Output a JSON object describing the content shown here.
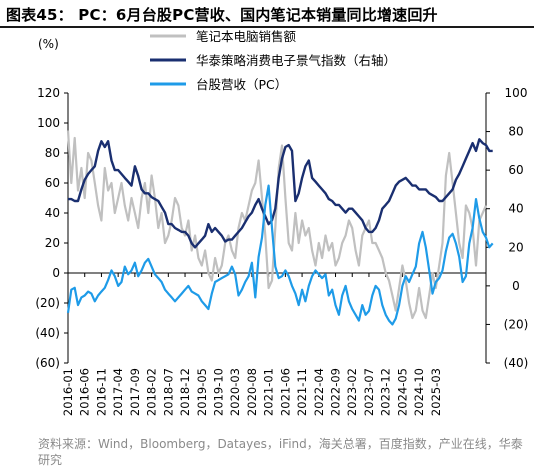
{
  "figure_title": "图表45： PC：6月台股PC营收、国内笔记本销量同比增速回升",
  "source_note": "资料来源：Wind，Bloomberg，Datayes，iFind，海关总署，百度指数，产业在线，华泰研究",
  "chart_data": {
    "type": "line",
    "unit_label": "(%)",
    "left_axis": {
      "ylim": [
        -60,
        120
      ],
      "ticks": [
        "120",
        "100",
        "80",
        "60",
        "40",
        "20",
        "0",
        "(20)",
        "(40)",
        "(60)"
      ]
    },
    "right_axis": {
      "ylim": [
        -40,
        100
      ],
      "ticks": [
        "100",
        "80",
        "60",
        "40",
        "20",
        "0",
        "(20)",
        "(40)"
      ]
    },
    "x_tick_labels": [
      "2016-01",
      "2016-06",
      "2016-11",
      "2017-04",
      "2017-09",
      "2018-02",
      "2018-07",
      "2018-12",
      "2019-05",
      "2019-10",
      "2020-03",
      "2020-08",
      "2021-01",
      "2021-06",
      "2021-11",
      "2022-04",
      "2022-09",
      "2023-02",
      "2023-07",
      "2023-12",
      "2024-05",
      "2024-10",
      "2025-03"
    ],
    "x_start": "2016-01",
    "grid": false,
    "legend_position": "top",
    "series": [
      {
        "name": "笔记本电脑销售额",
        "axis": "left",
        "color": "#c0c0c0",
        "values": [
          95,
          60,
          90,
          55,
          70,
          50,
          80,
          75,
          60,
          45,
          35,
          70,
          55,
          60,
          40,
          50,
          60,
          45,
          35,
          50,
          40,
          30,
          50,
          60,
          40,
          65,
          50,
          30,
          40,
          20,
          25,
          35,
          50,
          45,
          30,
          25,
          35,
          15,
          25,
          10,
          5,
          15,
          0,
          -5,
          10,
          0,
          5,
          20,
          25,
          15,
          10,
          30,
          40,
          35,
          45,
          55,
          60,
          75,
          50,
          25,
          -10,
          -5,
          30,
          70,
          85,
          50,
          20,
          15,
          40,
          20,
          35,
          25,
          30,
          15,
          5,
          20,
          10,
          25,
          15,
          20,
          5,
          10,
          20,
          25,
          35,
          30,
          15,
          5,
          25,
          30,
          35,
          20,
          20,
          15,
          10,
          0,
          -5,
          -15,
          -25,
          -10,
          5,
          -5,
          -20,
          -30,
          -25,
          -10,
          -25,
          -30,
          -15,
          0,
          -10,
          5,
          20,
          65,
          80,
          60,
          40,
          20,
          10,
          45,
          40,
          30,
          5,
          35,
          40,
          45
        ]
      },
      {
        "name": "华泰策略消费电子景气指数（右轴）",
        "axis": "right",
        "color": "#1a2f70",
        "values": [
          45,
          45,
          44,
          44,
          50,
          55,
          58,
          60,
          62,
          70,
          75,
          72,
          75,
          65,
          60,
          60,
          58,
          56,
          54,
          52,
          62,
          57,
          50,
          48,
          48,
          46,
          45,
          44,
          41,
          38,
          32,
          32,
          30,
          29,
          28,
          28,
          26,
          22,
          20,
          22,
          24,
          26,
          32,
          28,
          30,
          28,
          26,
          23,
          24,
          24,
          26,
          28,
          30,
          33,
          36,
          38,
          42,
          45,
          40,
          36,
          32,
          34,
          40,
          56,
          66,
          72,
          73,
          70,
          44,
          48,
          56,
          62,
          65,
          56,
          54,
          52,
          50,
          48,
          45,
          44,
          42,
          42,
          40,
          38,
          40,
          40,
          38,
          36,
          34,
          30,
          28,
          28,
          30,
          34,
          40,
          42,
          44,
          48,
          52,
          54,
          55,
          56,
          54,
          52,
          52,
          50,
          50,
          50,
          48,
          47,
          46,
          44,
          44,
          46,
          48,
          50,
          55,
          58,
          62,
          66,
          70,
          74,
          70,
          76,
          74,
          73,
          70,
          70
        ]
      },
      {
        "name": "台股营收（PC）",
        "axis": "right",
        "color": "#1e9be8",
        "values": [
          -14,
          -2,
          -1,
          -10,
          -6,
          -5,
          -3,
          -4,
          -8,
          -5,
          -3,
          -1,
          3,
          8,
          5,
          0,
          2,
          10,
          6,
          8,
          12,
          5,
          8,
          12,
          14,
          10,
          6,
          4,
          2,
          -2,
          -4,
          -6,
          -8,
          -6,
          -4,
          -2,
          0,
          -3,
          -4,
          -5,
          -8,
          -10,
          -12,
          -4,
          2,
          3,
          4,
          5,
          6,
          10,
          6,
          -5,
          -2,
          2,
          5,
          12,
          -6,
          15,
          25,
          42,
          52,
          30,
          10,
          4,
          5,
          8,
          5,
          0,
          -4,
          -10,
          -2,
          -8,
          0,
          5,
          8,
          6,
          4,
          6,
          -5,
          -2,
          -10,
          -15,
          -5,
          0,
          -8,
          -12,
          -15,
          -18,
          -10,
          -15,
          -13,
          -5,
          0,
          -2,
          -10,
          -15,
          -18,
          -20,
          -17,
          -10,
          0,
          5,
          2,
          6,
          10,
          22,
          28,
          20,
          8,
          -4,
          2,
          4,
          8,
          18,
          25,
          27,
          22,
          15,
          2,
          5,
          22,
          30,
          45,
          35,
          28,
          25,
          20,
          22
        ]
      }
    ]
  }
}
